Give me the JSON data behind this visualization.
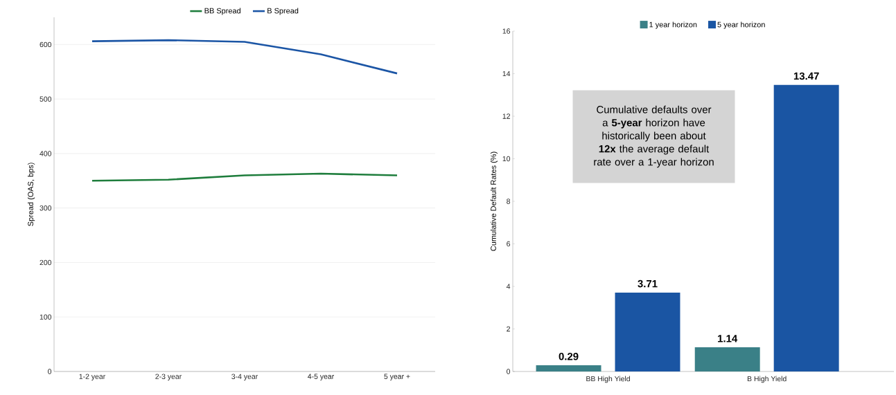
{
  "chart_data": [
    {
      "type": "line",
      "ylabel": "Spread (OAS, bps)",
      "categories": [
        "1-2 year",
        "2-3 year",
        "3-4 year",
        "4-5 year",
        "5 year +"
      ],
      "series": [
        {
          "name": "BB Spread",
          "color": "#1e7d3c",
          "values": [
            350,
            352,
            360,
            363,
            360
          ]
        },
        {
          "name": "B Spread",
          "color": "#1b55a5",
          "values": [
            606,
            608,
            605,
            582,
            547
          ]
        }
      ],
      "ylim": [
        0,
        650
      ],
      "yticks": [
        0,
        100,
        200,
        300,
        400,
        500,
        600
      ],
      "grid": "y",
      "legend": "top",
      "line_style": "solid",
      "marker": "none"
    },
    {
      "type": "bar",
      "ylabel": "Cumulative Default Rates (%)",
      "categories": [
        "BB High Yield",
        "B High Yield"
      ],
      "series": [
        {
          "name": "1 year horizon",
          "color": "#3a8087",
          "values": [
            0.29,
            1.14
          ]
        },
        {
          "name": "5 year horizon",
          "color": "#1a55a3",
          "values": [
            3.71,
            13.47
          ]
        }
      ],
      "ylim": [
        0,
        16
      ],
      "yticks": [
        0,
        2,
        4,
        6,
        8,
        10,
        12,
        14,
        16
      ],
      "legend": "top",
      "data_labels": true,
      "annotations": [
        "Cumulative defaults over a **5-year** horizon have historically been about **12x** the average default rate over a 1-year horizon"
      ]
    }
  ]
}
